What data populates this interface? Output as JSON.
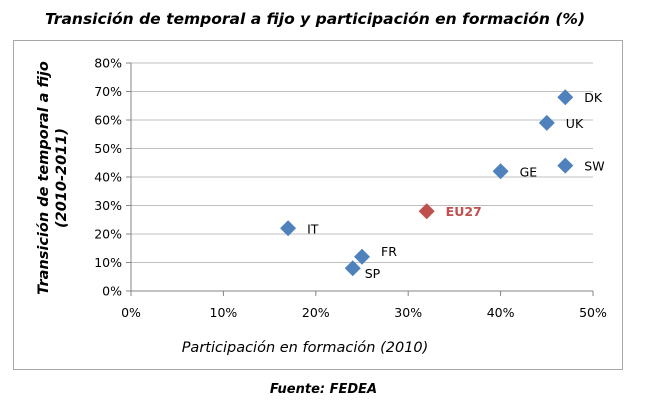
{
  "chart_data": {
    "type": "scatter",
    "title": "Transición de temporal a fijo y participación en formación (%)",
    "xlabel": "Participación en formación (2010)",
    "ylabel_line1": "Transición de temporal a fijo",
    "ylabel_line2": "(2010-2011)",
    "source": "Fuente: FEDEA",
    "xlim": [
      0,
      50
    ],
    "ylim": [
      0,
      80
    ],
    "x_ticks": [
      "0%",
      "10%",
      "20%",
      "30%",
      "40%",
      "50%"
    ],
    "y_ticks": [
      "0%",
      "10%",
      "20%",
      "30%",
      "40%",
      "50%",
      "60%",
      "70%",
      "80%"
    ],
    "grid": "horizontal",
    "colors": {
      "default": "#4f81bd",
      "highlight": "#c0504d",
      "grid": "#bfbfbf"
    },
    "points": [
      {
        "label": "DK",
        "x": 47,
        "y": 68,
        "highlight": false
      },
      {
        "label": "UK",
        "x": 45,
        "y": 59,
        "highlight": false
      },
      {
        "label": "SW",
        "x": 47,
        "y": 44,
        "highlight": false
      },
      {
        "label": "GE",
        "x": 40,
        "y": 42,
        "highlight": false
      },
      {
        "label": "EU27",
        "x": 32,
        "y": 28,
        "highlight": true
      },
      {
        "label": "IT",
        "x": 17,
        "y": 22,
        "highlight": false
      },
      {
        "label": "FR",
        "x": 25,
        "y": 12,
        "highlight": false
      },
      {
        "label": "SP",
        "x": 24,
        "y": 8,
        "highlight": false
      }
    ]
  }
}
